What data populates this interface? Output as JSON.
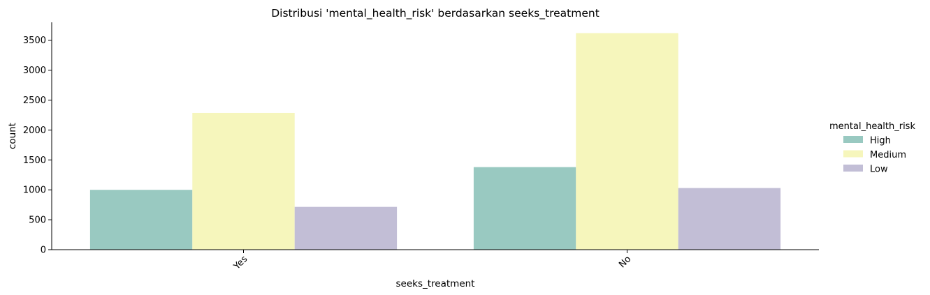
{
  "chart_data": {
    "type": "bar",
    "title": "Distribusi 'mental_health_risk' berdasarkan seeks_treatment",
    "xlabel": "seeks_treatment",
    "ylabel": "count",
    "categories": [
      "Yes",
      "No"
    ],
    "series": [
      {
        "name": "High",
        "color": "#99c9c1",
        "values": [
          1000,
          1380
        ]
      },
      {
        "name": "Medium",
        "color": "#f6f6bc",
        "values": [
          2285,
          3620
        ]
      },
      {
        "name": "Low",
        "color": "#c2bed6",
        "values": [
          715,
          1030
        ]
      }
    ],
    "ylim": [
      0,
      3800
    ],
    "yticks": [
      0,
      500,
      1000,
      1500,
      2000,
      2500,
      3000,
      3500
    ],
    "grid": false,
    "legend": {
      "title": "mental_health_risk",
      "placement": "right"
    }
  }
}
